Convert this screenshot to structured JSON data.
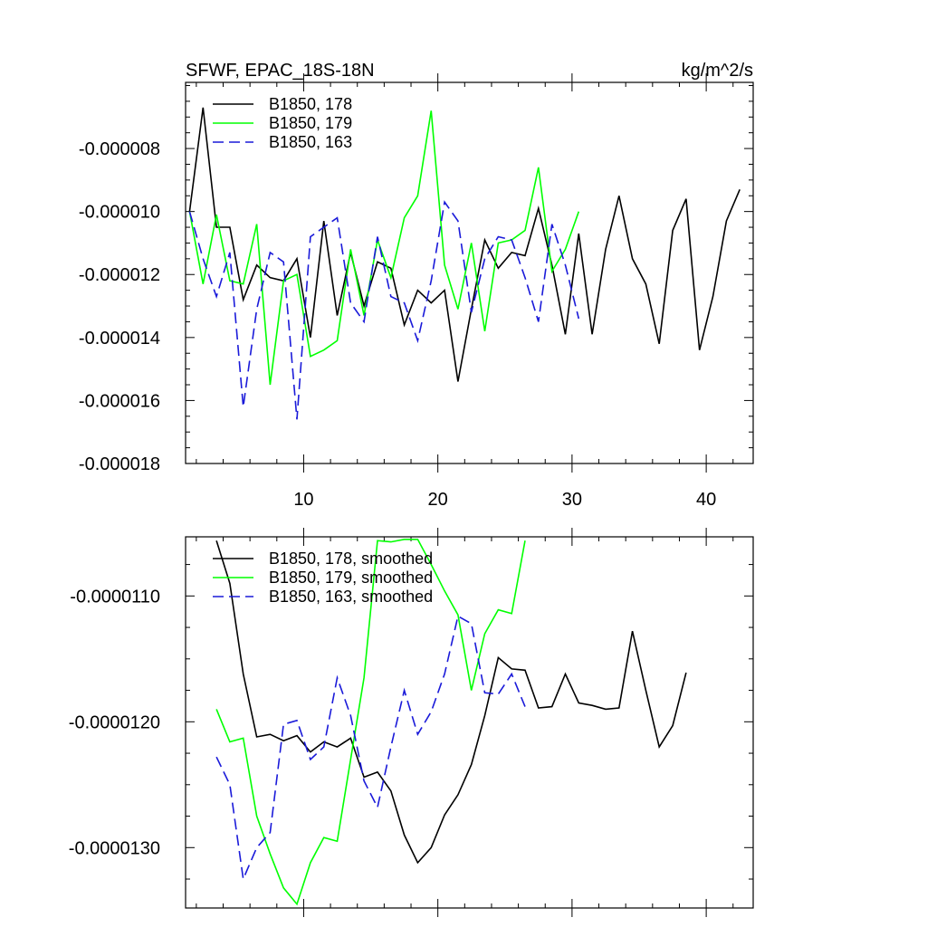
{
  "chart_data": [
    {
      "type": "line",
      "title": "SFWF, EPAC_18S-18N",
      "units": "kg/m^2/s",
      "xlim": [
        1.2,
        43.5
      ],
      "ylim": [
        -1.8e-05,
        -5.9e-06
      ],
      "xticks": [
        10,
        20,
        30,
        40
      ],
      "xtick_labels": [
        "10",
        "20",
        "30",
        "40"
      ],
      "yticks": [
        -1.8e-05,
        -1.6e-05,
        -1.4e-05,
        -1.2e-05,
        -1e-05,
        -8e-06
      ],
      "ytick_labels": [
        "-0.000018",
        "-0.000016",
        "-0.000014",
        "-0.000012",
        "-0.000010",
        "-0.000008"
      ],
      "legend_position": "top-left",
      "series": [
        {
          "name": "B1850, 178",
          "color": "#000000",
          "dash": "solid",
          "x": [
            1.5,
            2.5,
            3.5,
            4.5,
            5.5,
            6.5,
            7.5,
            8.5,
            9.5,
            10.5,
            11.5,
            12.5,
            13.5,
            14.5,
            15.5,
            16.5,
            17.5,
            18.5,
            19.5,
            20.5,
            21.5,
            22.5,
            23.5,
            24.5,
            25.5,
            26.5,
            27.5,
            28.5,
            29.5,
            30.5,
            31.5,
            32.5,
            33.5,
            34.5,
            35.5,
            36.5,
            37.5,
            38.5,
            39.5,
            40.5,
            41.5,
            42.5
          ],
          "y": [
            -1e-05,
            -6.7e-06,
            -1.05e-05,
            -1.05e-05,
            -1.28e-05,
            -1.17e-05,
            -1.21e-05,
            -1.22e-05,
            -1.15e-05,
            -1.4e-05,
            -1.03e-05,
            -1.33e-05,
            -1.13e-05,
            -1.3e-05,
            -1.16e-05,
            -1.18e-05,
            -1.36e-05,
            -1.25e-05,
            -1.29e-05,
            -1.25e-05,
            -1.54e-05,
            -1.31e-05,
            -1.09e-05,
            -1.18e-05,
            -1.13e-05,
            -1.14e-05,
            -9.9e-06,
            -1.17e-05,
            -1.39e-05,
            -1.07e-05,
            -1.39e-05,
            -1.12e-05,
            -9.5e-06,
            -1.15e-05,
            -1.23e-05,
            -1.42e-05,
            -1.06e-05,
            -9.6e-06,
            -1.44e-05,
            -1.27e-05,
            -1.03e-05,
            -9.3e-06
          ]
        },
        {
          "name": "B1850, 179",
          "color": "#00ff00",
          "dash": "solid",
          "x": [
            1.5,
            2.5,
            3.5,
            4.5,
            5.5,
            6.5,
            7.5,
            8.5,
            9.5,
            10.5,
            11.5,
            12.5,
            13.5,
            14.5,
            15.5,
            16.5,
            17.5,
            18.5,
            19.5,
            20.5,
            21.5,
            22.5,
            23.5,
            24.5,
            25.5,
            26.5,
            27.5,
            28.5,
            29.5,
            30.5
          ],
          "y": [
            -1e-05,
            -1.23e-05,
            -1.01e-05,
            -1.22e-05,
            -1.23e-05,
            -1.04e-05,
            -1.55e-05,
            -1.22e-05,
            -1.2e-05,
            -1.46e-05,
            -1.44e-05,
            -1.41e-05,
            -1.12e-05,
            -1.33e-05,
            -1.09e-05,
            -1.21e-05,
            -1.02e-05,
            -9.5e-06,
            -6.8e-06,
            -1.17e-05,
            -1.31e-05,
            -1.1e-05,
            -1.38e-05,
            -1.1e-05,
            -1.09e-05,
            -1.06e-05,
            -8.6e-06,
            -1.19e-05,
            -1.12e-05,
            -1e-05
          ]
        },
        {
          "name": "B1850, 163",
          "color": "#1a1ad9",
          "dash": "dashed",
          "x": [
            1.5,
            2.5,
            3.5,
            4.5,
            5.5,
            6.5,
            7.5,
            8.5,
            9.5,
            10.5,
            11.5,
            12.5,
            13.5,
            14.5,
            15.5,
            16.5,
            17.5,
            18.5,
            19.5,
            20.5,
            21.5,
            22.5,
            23.5,
            24.5,
            25.5,
            26.5,
            27.5,
            28.5,
            29.5,
            30.5
          ],
          "y": [
            -1e-05,
            -1.15e-05,
            -1.27e-05,
            -1.13e-05,
            -1.62e-05,
            -1.31e-05,
            -1.13e-05,
            -1.16e-05,
            -1.66e-05,
            -1.08e-05,
            -1.05e-05,
            -1.02e-05,
            -1.29e-05,
            -1.35e-05,
            -1.08e-05,
            -1.27e-05,
            -1.29e-05,
            -1.41e-05,
            -1.22e-05,
            -9.7e-06,
            -1.03e-05,
            -1.32e-05,
            -1.15e-05,
            -1.08e-05,
            -1.09e-05,
            -1.21e-05,
            -1.35e-05,
            -1.04e-05,
            -1.17e-05,
            -1.34e-05
          ]
        }
      ]
    },
    {
      "type": "line",
      "title": "",
      "units": "",
      "xlim": [
        1.2,
        43.5
      ],
      "ylim": [
        -1.348e-05,
        -1.053e-05
      ],
      "xticks": [
        10,
        20,
        30,
        40
      ],
      "xtick_labels": [],
      "yticks": [
        -1.3e-05,
        -1.2e-05,
        -1.1e-05
      ],
      "ytick_labels": [
        "-0.0000130",
        "-0.0000120",
        "-0.0000110"
      ],
      "legend_position": "top-left",
      "series": [
        {
          "name": "B1850, 178, smoothed",
          "color": "#000000",
          "dash": "solid",
          "x": [
            3.5,
            4.5,
            5.5,
            6.5,
            7.5,
            8.5,
            9.5,
            10.5,
            11.5,
            12.5,
            13.5,
            14.5,
            15.5,
            16.5,
            17.5,
            18.5,
            19.5,
            20.5,
            21.5,
            22.5,
            23.5,
            24.5,
            25.5,
            26.5,
            27.5,
            28.5,
            29.5,
            30.5,
            31.5,
            32.5,
            33.5,
            34.5,
            35.5,
            36.5,
            37.5,
            38.5
          ],
          "y": [
            -1.056e-05,
            -1.09e-05,
            -1.162e-05,
            -1.212e-05,
            -1.21e-05,
            -1.215e-05,
            -1.211e-05,
            -1.224e-05,
            -1.216e-05,
            -1.22e-05,
            -1.213e-05,
            -1.244e-05,
            -1.24e-05,
            -1.255e-05,
            -1.29e-05,
            -1.312e-05,
            -1.3e-05,
            -1.274e-05,
            -1.258e-05,
            -1.234e-05,
            -1.195e-05,
            -1.149e-05,
            -1.158e-05,
            -1.159e-05,
            -1.189e-05,
            -1.188e-05,
            -1.162e-05,
            -1.185e-05,
            -1.187e-05,
            -1.19e-05,
            -1.189e-05,
            -1.128e-05,
            -1.175e-05,
            -1.22e-05,
            -1.203e-05,
            -1.161e-05
          ]
        },
        {
          "name": "B1850, 179, smoothed",
          "color": "#00ff00",
          "dash": "solid",
          "x": [
            3.5,
            4.5,
            5.5,
            6.5,
            7.5,
            8.5,
            9.5,
            10.5,
            11.5,
            12.5,
            13.5,
            14.5,
            15.5,
            16.5,
            17.5,
            18.5,
            19.5,
            20.5,
            21.5,
            22.5,
            23.5,
            24.5,
            25.5,
            26.5
          ],
          "y": [
            -1.19e-05,
            -1.216e-05,
            -1.213e-05,
            -1.275e-05,
            -1.305e-05,
            -1.332e-05,
            -1.345e-05,
            -1.312e-05,
            -1.292e-05,
            -1.295e-05,
            -1.23e-05,
            -1.165e-05,
            -1.056e-05,
            -1.057e-05,
            -1.055e-05,
            -1.055e-05,
            -1.075e-05,
            -1.096e-05,
            -1.115e-05,
            -1.175e-05,
            -1.13e-05,
            -1.111e-05,
            -1.114e-05,
            -1.056e-05
          ]
        },
        {
          "name": "B1850, 163, smoothed",
          "color": "#1a1ad9",
          "dash": "dashed",
          "x": [
            3.5,
            4.5,
            5.5,
            6.5,
            7.5,
            8.5,
            9.5,
            10.5,
            11.5,
            12.5,
            13.5,
            14.5,
            15.5,
            16.5,
            17.5,
            18.5,
            19.5,
            20.5,
            21.5,
            22.5,
            23.5,
            24.5,
            25.5,
            26.5
          ],
          "y": [
            -1.228e-05,
            -1.25e-05,
            -1.325e-05,
            -1.3e-05,
            -1.288e-05,
            -1.202e-05,
            -1.199e-05,
            -1.23e-05,
            -1.22e-05,
            -1.165e-05,
            -1.195e-05,
            -1.247e-05,
            -1.268e-05,
            -1.22e-05,
            -1.175e-05,
            -1.21e-05,
            -1.192e-05,
            -1.162e-05,
            -1.116e-05,
            -1.122e-05,
            -1.177e-05,
            -1.178e-05,
            -1.162e-05,
            -1.188e-05
          ]
        }
      ]
    }
  ]
}
